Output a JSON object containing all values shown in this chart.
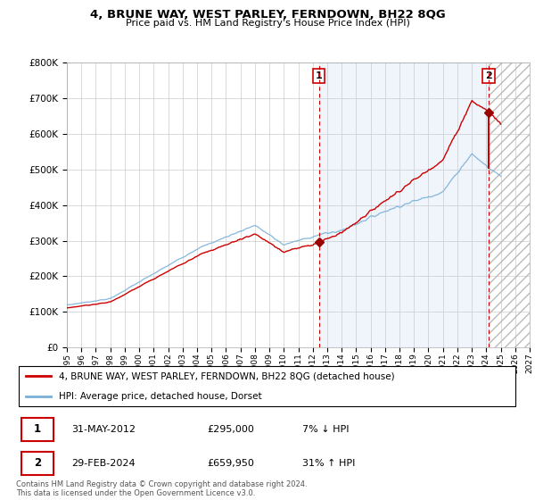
{
  "title": "4, BRUNE WAY, WEST PARLEY, FERNDOWN, BH22 8QG",
  "subtitle": "Price paid vs. HM Land Registry's House Price Index (HPI)",
  "ylim": [
    0,
    800000
  ],
  "yticks": [
    0,
    100000,
    200000,
    300000,
    400000,
    500000,
    600000,
    700000,
    800000
  ],
  "ytick_labels": [
    "£0",
    "£100K",
    "£200K",
    "£300K",
    "£400K",
    "£500K",
    "£600K",
    "£700K",
    "£800K"
  ],
  "hpi_color": "#7ab0d8",
  "price_color": "#cc0000",
  "marker_color": "#990000",
  "bg_fill_color": "#ddeeff",
  "hatch_color": "#cccccc",
  "transaction1": {
    "date": "31-MAY-2012",
    "price": 295000,
    "label": "1",
    "pct": "7% ↓ HPI",
    "x_year": 2012.42
  },
  "transaction2": {
    "date": "29-FEB-2024",
    "price": 659950,
    "label": "2",
    "pct": "31% ↑ HPI",
    "x_year": 2024.16
  },
  "legend_entry1": "4, BRUNE WAY, WEST PARLEY, FERNDOWN, BH22 8QG (detached house)",
  "legend_entry2": "HPI: Average price, detached house, Dorset",
  "footnote": "Contains HM Land Registry data © Crown copyright and database right 2024.\nThis data is licensed under the Open Government Licence v3.0.",
  "table_rows": [
    {
      "num": "1",
      "date": "31-MAY-2012",
      "price": "£295,000",
      "pct": "7% ↓ HPI"
    },
    {
      "num": "2",
      "date": "29-FEB-2024",
      "price": "£659,950",
      "pct": "31% ↑ HPI"
    }
  ],
  "xmin": 1995,
  "xmax": 2027,
  "xticks": [
    1995,
    1996,
    1997,
    1998,
    1999,
    2000,
    2001,
    2002,
    2003,
    2004,
    2005,
    2006,
    2007,
    2008,
    2009,
    2010,
    2011,
    2012,
    2013,
    2014,
    2015,
    2016,
    2017,
    2018,
    2019,
    2020,
    2021,
    2022,
    2023,
    2024,
    2025,
    2026,
    2027
  ]
}
